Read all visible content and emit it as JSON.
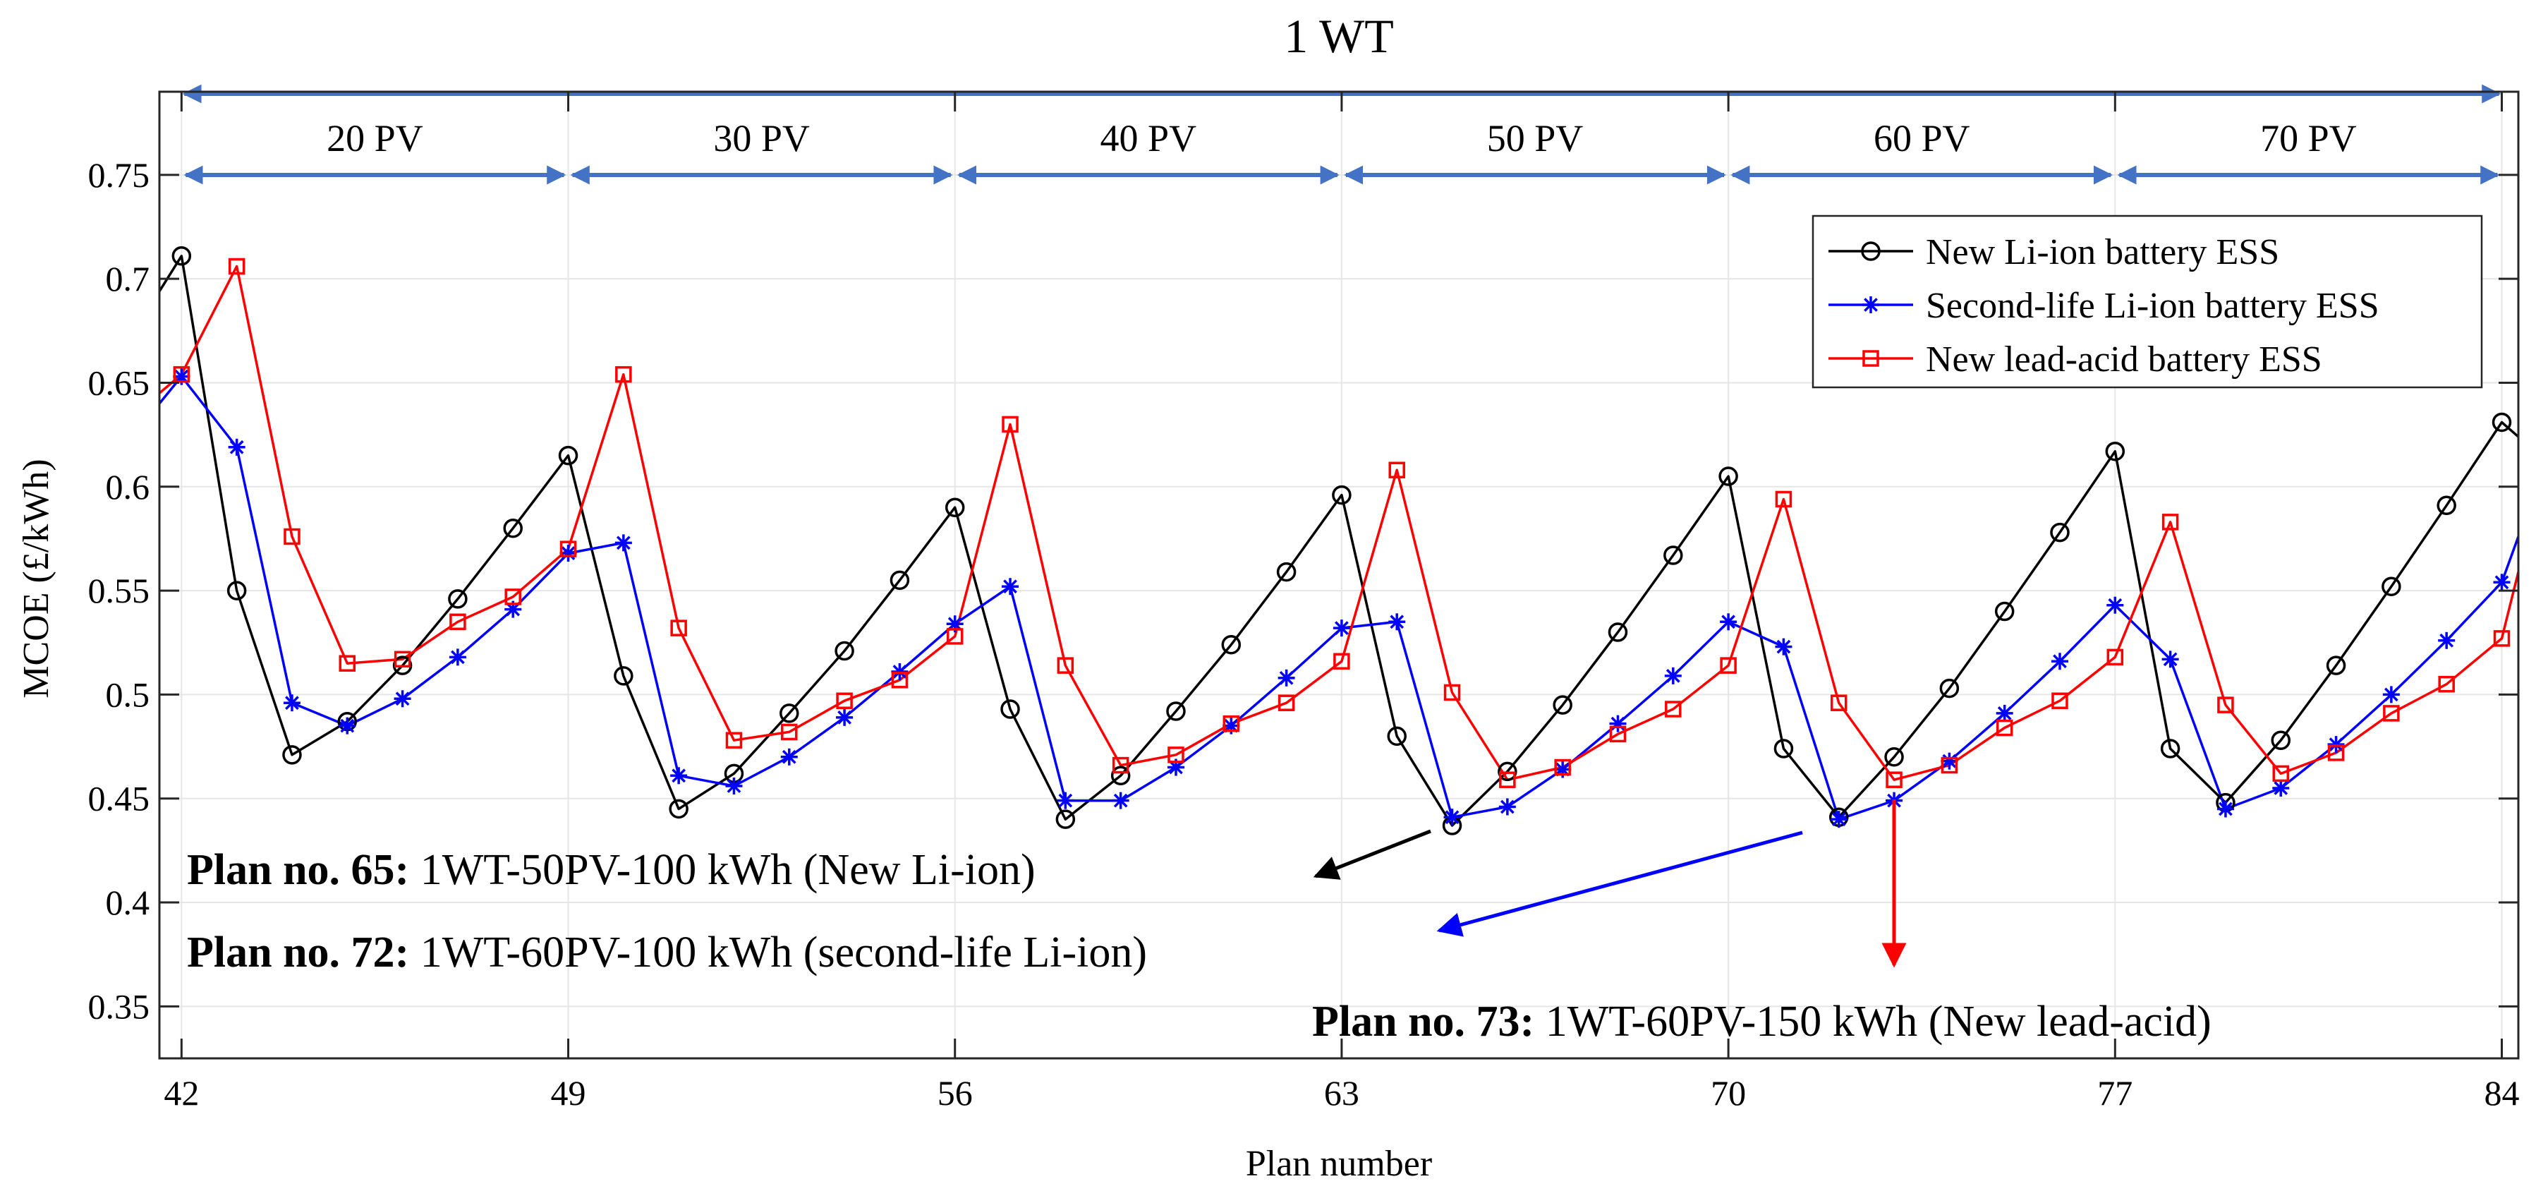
{
  "chart_data": {
    "type": "line",
    "title": "1 WT",
    "xlabel": "Plan number",
    "ylabel": "MCOE (£/kWh)",
    "xlim": [
      41.6,
      84.3
    ],
    "ylim": [
      0.325,
      0.79
    ],
    "xticks": [
      42,
      49,
      56,
      63,
      70,
      77,
      84
    ],
    "yticks": [
      0.35,
      0.4,
      0.45,
      0.5,
      0.55,
      0.6,
      0.65,
      0.7,
      0.75
    ],
    "ytick_labels": [
      "0.35",
      "0.4",
      "0.45",
      "0.5",
      "0.55",
      "0.6",
      "0.65",
      "0.7",
      "0.75"
    ],
    "grid": true,
    "legend_position": "top-right",
    "x": [
      42,
      43,
      44,
      45,
      46,
      47,
      48,
      49,
      50,
      51,
      52,
      53,
      54,
      55,
      56,
      57,
      58,
      59,
      60,
      61,
      62,
      63,
      64,
      65,
      66,
      67,
      68,
      69,
      70,
      71,
      72,
      73,
      74,
      75,
      76,
      77,
      78,
      79,
      80,
      81,
      82,
      83,
      84
    ],
    "series": [
      {
        "name": "New Li-ion battery ESS",
        "color": "#000000",
        "marker": "circle",
        "start_y": 0.694,
        "values": [
          0.711,
          0.55,
          0.471,
          0.487,
          0.514,
          0.546,
          0.58,
          0.615,
          0.509,
          0.445,
          0.462,
          0.491,
          0.521,
          0.555,
          0.59,
          0.493,
          0.44,
          0.461,
          0.492,
          0.524,
          0.559,
          0.596,
          0.48,
          0.437,
          0.463,
          0.495,
          0.53,
          0.567,
          0.605,
          0.474,
          0.441,
          0.47,
          0.503,
          0.54,
          0.578,
          0.617,
          0.474,
          0.448,
          0.478,
          0.514,
          0.552,
          0.591,
          0.631
        ],
        "end_y": 0.624
      },
      {
        "name": "Second-life Li-ion battery ESS",
        "color": "#0000ff",
        "marker": "asterisk",
        "start_y": 0.64,
        "values": [
          0.653,
          0.619,
          0.496,
          0.485,
          0.498,
          0.518,
          0.541,
          0.568,
          0.573,
          0.461,
          0.456,
          0.47,
          0.489,
          0.511,
          0.534,
          0.552,
          0.449,
          0.449,
          0.465,
          0.485,
          0.508,
          0.532,
          0.535,
          0.441,
          0.446,
          0.464,
          0.486,
          0.509,
          0.535,
          0.523,
          0.44,
          0.449,
          0.468,
          0.491,
          0.516,
          0.543,
          0.517,
          0.445,
          0.455,
          0.476,
          0.5,
          0.526,
          0.554
        ],
        "end_y": 0.576
      },
      {
        "name": "New lead-acid battery ESS",
        "color": "#ff0000",
        "marker": "square",
        "start_y": 0.645,
        "values": [
          0.654,
          0.706,
          0.576,
          0.515,
          0.517,
          0.535,
          0.547,
          0.57,
          0.654,
          0.532,
          0.478,
          0.482,
          0.497,
          0.507,
          0.528,
          0.63,
          0.514,
          0.466,
          0.471,
          0.486,
          0.496,
          0.516,
          0.608,
          0.501,
          0.459,
          0.465,
          0.481,
          0.493,
          0.514,
          0.594,
          0.496,
          0.459,
          0.466,
          0.484,
          0.497,
          0.518,
          0.583,
          0.495,
          0.462,
          0.472,
          0.491,
          0.505,
          0.527
        ],
        "end_y": 0.559
      }
    ],
    "segments": [
      {
        "label": "20 PV",
        "from": 42,
        "to": 49
      },
      {
        "label": "30 PV",
        "from": 49,
        "to": 56
      },
      {
        "label": "40 PV",
        "from": 56,
        "to": 63
      },
      {
        "label": "50 PV",
        "from": 63,
        "to": 70
      },
      {
        "label": "60 PV",
        "from": 70,
        "to": 77
      },
      {
        "label": "70 PV",
        "from": 77,
        "to": 84
      }
    ],
    "segment_color": "#4472c4",
    "annotations": [
      {
        "bold": "Plan no. 65:",
        "text": " 1WT-50PV-100 kWh (New Li-ion)",
        "color": "#000000"
      },
      {
        "bold": "Plan no. 72:",
        "text": " 1WT-60PV-100 kWh (second-life Li-ion)",
        "color": "#0000ff"
      },
      {
        "bold": "Plan no. 73:",
        "text": " 1WT-60PV-150 kWh (New lead-acid)",
        "color": "#ff0000"
      }
    ]
  }
}
